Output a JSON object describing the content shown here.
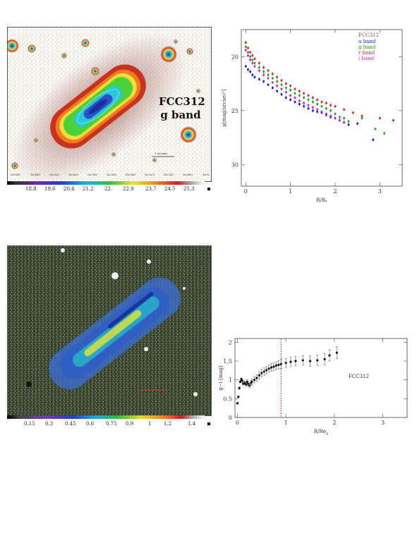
{
  "top_left_image": {
    "label_line1": "FCC312",
    "label_line2": "g band",
    "scale_bar_label": "1 arcmin",
    "ra_ticks": [
      "56.660",
      "56.640",
      "56.620",
      "56.600",
      "56.580",
      "56.560",
      "56.540",
      "56.520",
      "56.500",
      "56.480",
      "56.4"
    ],
    "colorbar_ticks": [
      "18.8",
      "19.6",
      "20.4",
      "21.2",
      "22",
      "22.9",
      "23.7",
      "24.5",
      "25.3"
    ]
  },
  "bottom_left_image": {
    "colorbar_ticks": [
      "0.15",
      "0.3",
      "0.45",
      "0.6",
      "0.75",
      "0.9",
      "1",
      "1.2",
      "1.4"
    ]
  },
  "chart_data": [
    {
      "type": "scatter",
      "title": "FCC312",
      "xlabel": "R/Rₑ",
      "ylabel": "μ[mag/arcsec²]",
      "xlim": [
        -0.1,
        3.5
      ],
      "ylim": [
        32,
        17.5
      ],
      "xticks": [
        "0",
        "1",
        "2",
        "3"
      ],
      "yticks": [
        "20",
        "25",
        "30"
      ],
      "legend_position": "top-right",
      "series": [
        {
          "name": "u band",
          "color": "#1c1ccf",
          "x": [
            0,
            0.05,
            0.1,
            0.15,
            0.2,
            0.3,
            0.4,
            0.5,
            0.6,
            0.7,
            0.8,
            0.9,
            1.0,
            1.1,
            1.2,
            1.3,
            1.4,
            1.5,
            1.6,
            1.7,
            1.8,
            1.9,
            2.0,
            2.1,
            2.2,
            2.3,
            2.5,
            2.85
          ],
          "y": [
            20.9,
            21.2,
            21.4,
            21.7,
            21.9,
            22.1,
            22.3,
            22.6,
            22.9,
            23.2,
            23.5,
            23.8,
            24.0,
            24.2,
            24.4,
            24.6,
            24.8,
            25.0,
            25.1,
            25.2,
            25.4,
            25.6,
            25.7,
            25.9,
            26.1,
            26.3,
            26.2,
            27.7
          ]
        },
        {
          "name": "g band",
          "color": "#1aa61a",
          "x": [
            0,
            0.05,
            0.1,
            0.15,
            0.2,
            0.3,
            0.4,
            0.5,
            0.6,
            0.7,
            0.8,
            0.9,
            1.0,
            1.1,
            1.2,
            1.3,
            1.4,
            1.5,
            1.6,
            1.7,
            1.8,
            1.9,
            2.0,
            2.1,
            2.2,
            2.3,
            2.6,
            2.9,
            3.1
          ],
          "y": [
            19.1,
            19.6,
            20.0,
            20.3,
            20.6,
            21.0,
            21.4,
            21.7,
            22.0,
            22.3,
            22.6,
            22.9,
            23.1,
            23.4,
            23.6,
            23.8,
            24.0,
            24.2,
            24.4,
            24.6,
            24.8,
            25.0,
            25.3,
            25.6,
            25.7,
            26.0,
            25.7,
            26.7,
            27.1
          ]
        },
        {
          "name": "r band",
          "color": "#cc2a2a",
          "x": [
            0,
            0.05,
            0.1,
            0.15,
            0.2,
            0.3,
            0.4,
            0.5,
            0.6,
            0.7,
            0.8,
            0.9,
            1.0,
            1.1,
            1.2,
            1.3,
            1.4,
            1.5,
            1.6,
            1.7,
            1.8,
            1.9,
            2.0,
            2.2,
            2.4,
            2.6,
            3.0,
            3.3
          ],
          "y": [
            18.7,
            19.2,
            19.6,
            19.9,
            20.2,
            20.6,
            21.0,
            21.3,
            21.6,
            21.9,
            22.2,
            22.5,
            22.7,
            23.0,
            23.2,
            23.4,
            23.6,
            23.8,
            24.0,
            24.2,
            24.3,
            24.5,
            24.6,
            24.9,
            25.2,
            25.5,
            25.7,
            25.9
          ]
        },
        {
          "name": "i band",
          "color": "#d21fd2",
          "x": [
            0,
            0.05,
            0.1,
            0.15,
            0.2,
            0.3,
            0.4,
            0.5,
            0.6,
            0.7,
            0.8,
            0.9,
            1.0,
            1.1,
            1.2,
            1.3,
            1.4,
            1.5,
            1.6,
            1.7,
            1.8,
            1.9,
            2.0,
            2.1,
            2.2
          ],
          "y": [
            19.4,
            19.9,
            20.3,
            20.6,
            20.9,
            21.3,
            21.7,
            22.0,
            22.4,
            22.7,
            23.0,
            23.3,
            23.6,
            23.8,
            24.1,
            24.3,
            24.5,
            24.7,
            24.9,
            25.1,
            25.3,
            25.5,
            25.7,
            25.9,
            26.1
          ]
        }
      ]
    },
    {
      "type": "scatter",
      "title": "FCC312",
      "xlabel": "R/Re",
      "xlabel_sub": "g",
      "ylabel": "g−i [mag]",
      "xlim": [
        -0.05,
        3.5
      ],
      "ylim": [
        0,
        2.1
      ],
      "xticks": [
        "0",
        "1",
        "2",
        "3"
      ],
      "yticks": [
        "0",
        "0.5",
        "1",
        "1.5",
        "2"
      ],
      "vline_x": 0.9,
      "series": [
        {
          "name": "",
          "color": "#111111",
          "x": [
            0,
            0.02,
            0.04,
            0.06,
            0.08,
            0.1,
            0.12,
            0.15,
            0.18,
            0.2,
            0.22,
            0.25,
            0.28,
            0.3,
            0.35,
            0.4,
            0.45,
            0.5,
            0.55,
            0.6,
            0.65,
            0.7,
            0.75,
            0.8,
            0.85,
            0.9,
            1.0,
            1.1,
            1.2,
            1.35,
            1.5,
            1.65,
            1.8,
            1.9,
            2.05
          ],
          "y": [
            0.38,
            0.55,
            0.78,
            0.95,
            1.02,
            0.98,
            0.9,
            0.92,
            0.88,
            0.95,
            0.9,
            0.85,
            0.92,
            0.95,
            1.0,
            1.05,
            1.12,
            1.18,
            1.22,
            1.26,
            1.3,
            1.33,
            1.35,
            1.38,
            1.4,
            1.42,
            1.45,
            1.48,
            1.5,
            1.52,
            1.5,
            1.52,
            1.55,
            1.65,
            1.72
          ],
          "err": [
            0.02,
            0.02,
            0.03,
            0.03,
            0.03,
            0.04,
            0.04,
            0.05,
            0.05,
            0.05,
            0.06,
            0.06,
            0.07,
            0.08,
            0.08,
            0.09,
            0.1,
            0.1,
            0.1,
            0.1,
            0.1,
            0.1,
            0.1,
            0.1,
            0.11,
            0.12,
            0.12,
            0.13,
            0.13,
            0.13,
            0.14,
            0.14,
            0.15,
            0.15,
            0.16
          ]
        }
      ]
    }
  ],
  "colors": {
    "sky": "#fbfaf6",
    "halo": "#c8321f",
    "disk_green": "#4bd13a",
    "disk_cyan": "#28c8d8",
    "core_blue": "#1a2fa0",
    "vline": "#c0392b"
  }
}
